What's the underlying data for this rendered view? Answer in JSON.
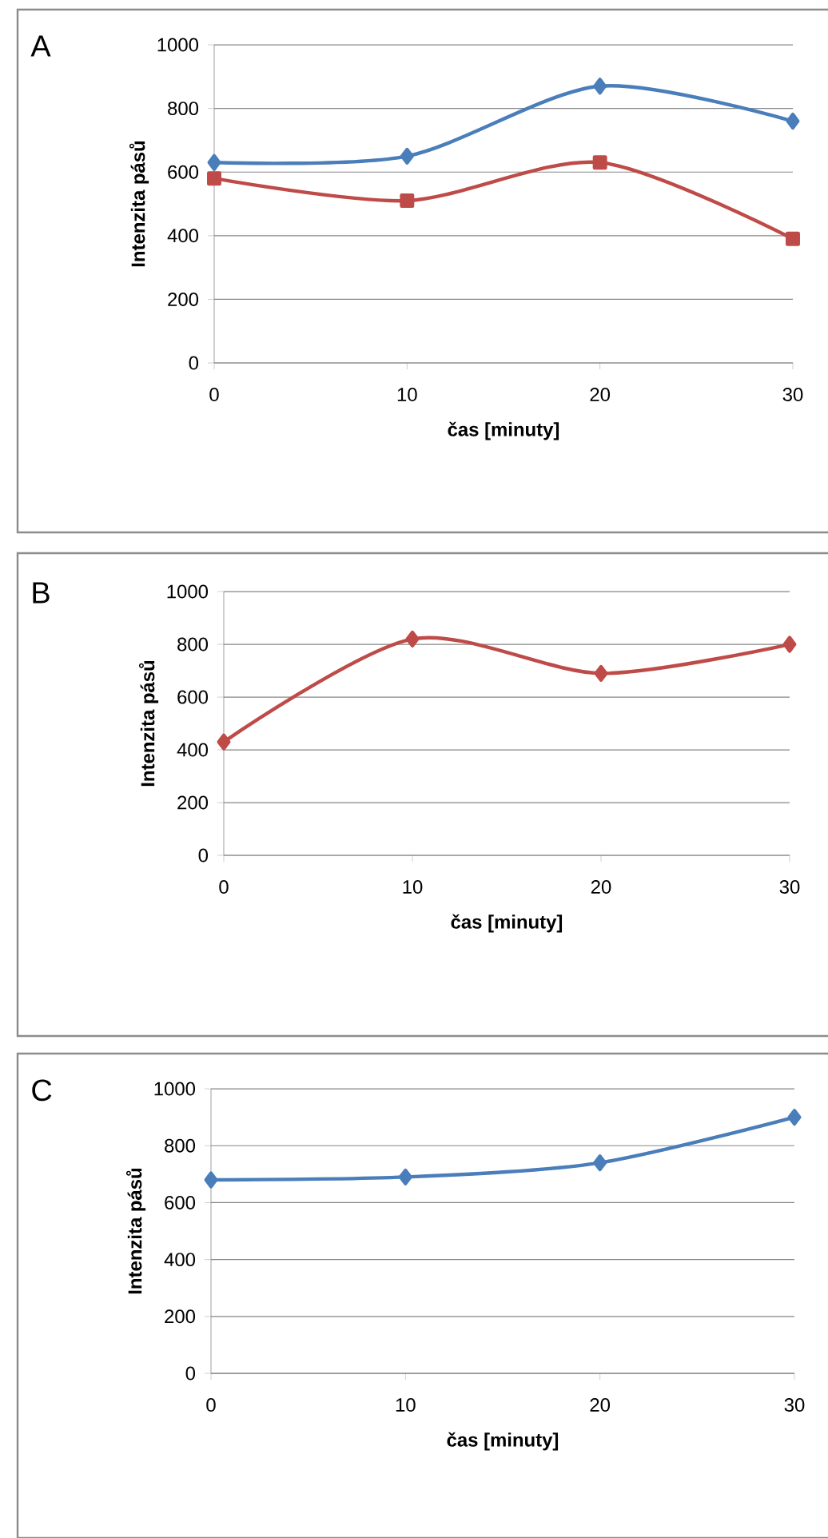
{
  "chart_data": [
    {
      "type": "line",
      "title": "A",
      "xlabel": "čas [minuty]",
      "ylabel": "Intenzita pásů",
      "x": [
        0,
        10,
        20,
        30
      ],
      "xlim": [
        0,
        30
      ],
      "xticks": [
        0,
        10,
        20,
        30
      ],
      "ylim": [
        0,
        1000
      ],
      "yticks": [
        0,
        200,
        400,
        600,
        800,
        1000
      ],
      "grid": "y",
      "series": [
        {
          "color": "#4a7ebb",
          "marker": "diamond",
          "values": [
            630,
            650,
            870,
            760
          ]
        },
        {
          "color": "#be4b48",
          "marker": "square",
          "values": [
            580,
            510,
            630,
            390
          ]
        }
      ]
    },
    {
      "type": "line",
      "title": "B",
      "xlabel": "čas [minuty]",
      "ylabel": "Intenzita pásů",
      "x": [
        0,
        10,
        20,
        30
      ],
      "xlim": [
        0,
        30
      ],
      "xticks": [
        0,
        10,
        20,
        30
      ],
      "ylim": [
        0,
        1000
      ],
      "yticks": [
        0,
        200,
        400,
        600,
        800,
        1000
      ],
      "grid": "y",
      "series": [
        {
          "color": "#be4b48",
          "marker": "diamond",
          "values": [
            430,
            820,
            690,
            800
          ]
        }
      ]
    },
    {
      "type": "line",
      "title": "C",
      "xlabel": "čas [minuty]",
      "ylabel": "Intenzita pásů",
      "x": [
        0,
        10,
        20,
        30
      ],
      "xlim": [
        0,
        30
      ],
      "xticks": [
        0,
        10,
        20,
        30
      ],
      "ylim": [
        0,
        1000
      ],
      "yticks": [
        0,
        200,
        400,
        600,
        800,
        1000
      ],
      "grid": "y",
      "series": [
        {
          "color": "#4a7ebb",
          "marker": "diamond",
          "values": [
            680,
            690,
            740,
            900
          ]
        }
      ]
    }
  ]
}
